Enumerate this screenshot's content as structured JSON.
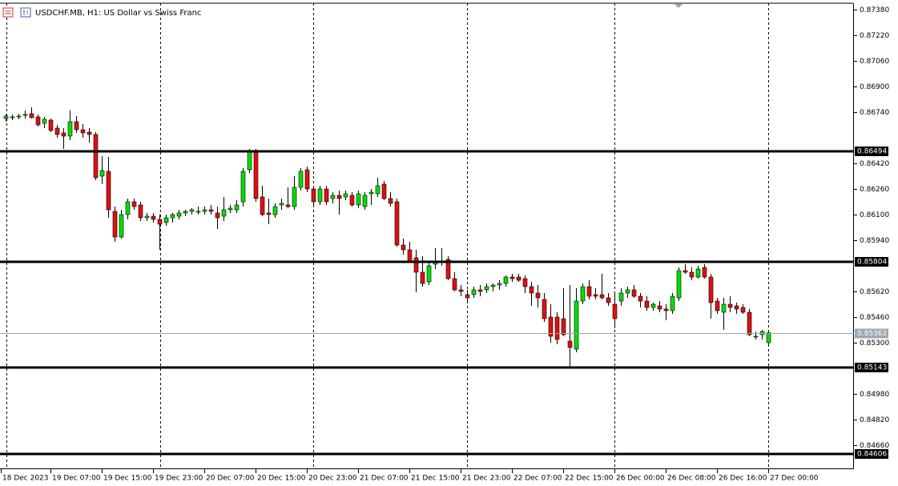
{
  "chart_data": {
    "type": "candlestick",
    "title": "USDCHF.MB, H1:  US Dollar vs Swiss Franc",
    "up_color": "#00e000",
    "down_color": "#e01010",
    "ylim": [
      0.84515,
      0.8744
    ],
    "yticks": [
      {
        "value": 0.8738,
        "label": "0.87380"
      },
      {
        "value": 0.8722,
        "label": "0.87220"
      },
      {
        "value": 0.8706,
        "label": "0.87060"
      },
      {
        "value": 0.869,
        "label": "0.86900"
      },
      {
        "value": 0.8674,
        "label": "0.86740"
      },
      {
        "value": 0.8642,
        "label": "0.86420"
      },
      {
        "value": 0.8626,
        "label": "0.86260"
      },
      {
        "value": 0.861,
        "label": "0.86100"
      },
      {
        "value": 0.8594,
        "label": "0.85940"
      },
      {
        "value": 0.8562,
        "label": "0.85620"
      },
      {
        "value": 0.8546,
        "label": "0.85460"
      },
      {
        "value": 0.853,
        "label": "0.85300"
      },
      {
        "value": 0.8498,
        "label": "0.84980"
      },
      {
        "value": 0.8482,
        "label": "0.84820"
      },
      {
        "value": 0.8466,
        "label": "0.84660"
      }
    ],
    "levels": [
      {
        "value": 0.86494,
        "label": "0.86494"
      },
      {
        "value": 0.85804,
        "label": "0.85804"
      },
      {
        "value": 0.85143,
        "label": "0.85143"
      },
      {
        "value": 0.84606,
        "label": "0.84606"
      }
    ],
    "current_price": {
      "value": 0.85362,
      "label": "0.85362"
    },
    "x_labels": [
      "18 Dec 2023",
      "19 Dec 07:00",
      "19 Dec 15:00",
      "19 Dec 23:00",
      "20 Dec 07:00",
      "20 Dec 15:00",
      "20 Dec 23:00",
      "21 Dec 07:00",
      "21 Dec 15:00",
      "21 Dec 23:00",
      "22 Dec 07:00",
      "22 Dec 15:00",
      "26 Dec 00:00",
      "26 Dec 08:00",
      "26 Dec 16:00",
      "27 Dec 00:00"
    ],
    "ohlc": [
      [
        0.867,
        0.86725,
        0.8668,
        0.86715
      ],
      [
        0.8671,
        0.86725,
        0.8669,
        0.8671
      ],
      [
        0.8671,
        0.8673,
        0.86695,
        0.86715
      ],
      [
        0.8672,
        0.8675,
        0.867,
        0.86725
      ],
      [
        0.8673,
        0.8677,
        0.867,
        0.86705
      ],
      [
        0.8671,
        0.86725,
        0.8665,
        0.8666
      ],
      [
        0.8667,
        0.8671,
        0.8664,
        0.86695
      ],
      [
        0.8669,
        0.867,
        0.86615,
        0.86625
      ],
      [
        0.8664,
        0.8666,
        0.8658,
        0.866
      ],
      [
        0.8661,
        0.8664,
        0.8651,
        0.8659
      ],
      [
        0.8659,
        0.8675,
        0.86565,
        0.8668
      ],
      [
        0.8668,
        0.86715,
        0.8661,
        0.8663
      ],
      [
        0.8663,
        0.86665,
        0.8658,
        0.8661
      ],
      [
        0.86615,
        0.8664,
        0.8655,
        0.866
      ],
      [
        0.866,
        0.86615,
        0.86315,
        0.8633
      ],
      [
        0.8634,
        0.86465,
        0.8629,
        0.86375
      ],
      [
        0.8637,
        0.8646,
        0.8608,
        0.8613
      ],
      [
        0.8612,
        0.8615,
        0.8593,
        0.8596
      ],
      [
        0.8596,
        0.8613,
        0.8595,
        0.861
      ],
      [
        0.861,
        0.862,
        0.8607,
        0.8618
      ],
      [
        0.8618,
        0.862,
        0.8613,
        0.8615
      ],
      [
        0.8616,
        0.8618,
        0.8606,
        0.8608
      ],
      [
        0.8608,
        0.8611,
        0.8606,
        0.8609
      ],
      [
        0.8609,
        0.8611,
        0.8605,
        0.8607
      ],
      [
        0.8607,
        0.861,
        0.8588,
        0.8604
      ],
      [
        0.8605,
        0.861,
        0.8603,
        0.8608
      ],
      [
        0.8608,
        0.8611,
        0.8605,
        0.861
      ],
      [
        0.8609,
        0.8613,
        0.8607,
        0.8611
      ],
      [
        0.8611,
        0.8613,
        0.8609,
        0.8612
      ],
      [
        0.8612,
        0.8614,
        0.861,
        0.8613
      ],
      [
        0.8612,
        0.8615,
        0.861,
        0.8612
      ],
      [
        0.8612,
        0.8615,
        0.861,
        0.8613
      ],
      [
        0.8613,
        0.8616,
        0.861,
        0.8612
      ],
      [
        0.8611,
        0.8615,
        0.8601,
        0.8608
      ],
      [
        0.8609,
        0.8621,
        0.8606,
        0.8613
      ],
      [
        0.8613,
        0.8616,
        0.8611,
        0.8614
      ],
      [
        0.8613,
        0.8619,
        0.8611,
        0.8616
      ],
      [
        0.8618,
        0.8639,
        0.8615,
        0.8637
      ],
      [
        0.8638,
        0.8651,
        0.8636,
        0.8649
      ],
      [
        0.8649,
        0.8651,
        0.8618,
        0.862
      ],
      [
        0.8621,
        0.8628,
        0.8609,
        0.861
      ],
      [
        0.8611,
        0.862,
        0.8604,
        0.861
      ],
      [
        0.861,
        0.8617,
        0.8608,
        0.8615
      ],
      [
        0.8616,
        0.862,
        0.8613,
        0.8617
      ],
      [
        0.8616,
        0.8627,
        0.8614,
        0.8615
      ],
      [
        0.8615,
        0.8634,
        0.8613,
        0.8627
      ],
      [
        0.8627,
        0.8639,
        0.8625,
        0.8637
      ],
      [
        0.8638,
        0.864,
        0.8624,
        0.8626
      ],
      [
        0.8626,
        0.8628,
        0.8616,
        0.8618
      ],
      [
        0.8618,
        0.8628,
        0.8616,
        0.8626
      ],
      [
        0.8626,
        0.8628,
        0.8616,
        0.8618
      ],
      [
        0.862,
        0.8624,
        0.8617,
        0.8622
      ],
      [
        0.8622,
        0.8625,
        0.861,
        0.862
      ],
      [
        0.8621,
        0.8625,
        0.8619,
        0.8623
      ],
      [
        0.8622,
        0.8624,
        0.8615,
        0.8616
      ],
      [
        0.8616,
        0.8625,
        0.8614,
        0.8623
      ],
      [
        0.8615,
        0.8624,
        0.8613,
        0.8622
      ],
      [
        0.8623,
        0.8626,
        0.8616,
        0.8624
      ],
      [
        0.8623,
        0.8633,
        0.8621,
        0.8628
      ],
      [
        0.8629,
        0.8631,
        0.8619,
        0.862
      ],
      [
        0.862,
        0.8624,
        0.8615,
        0.8617
      ],
      [
        0.8618,
        0.862,
        0.859,
        0.8591
      ],
      [
        0.8591,
        0.8595,
        0.8585,
        0.8588
      ],
      [
        0.8588,
        0.8593,
        0.858,
        0.8581
      ],
      [
        0.8583,
        0.8588,
        0.85615,
        0.8574
      ],
      [
        0.8574,
        0.8584,
        0.8565,
        0.8567
      ],
      [
        0.8568,
        0.858,
        0.8566,
        0.8578
      ],
      [
        0.8579,
        0.8589,
        0.8576,
        0.8581
      ],
      [
        0.858,
        0.8589,
        0.8578,
        0.8581
      ],
      [
        0.8582,
        0.8584,
        0.8569,
        0.857
      ],
      [
        0.857,
        0.8574,
        0.8562,
        0.8563
      ],
      [
        0.8563,
        0.8566,
        0.8559,
        0.8562
      ],
      [
        0.856,
        0.8563,
        0.8556,
        0.8558
      ],
      [
        0.856,
        0.8565,
        0.8558,
        0.8563
      ],
      [
        0.8563,
        0.8566,
        0.8559,
        0.8562
      ],
      [
        0.8563,
        0.8567,
        0.8561,
        0.8565
      ],
      [
        0.8565,
        0.8567,
        0.8562,
        0.8566
      ],
      [
        0.8566,
        0.8569,
        0.8563,
        0.8567
      ],
      [
        0.8567,
        0.8572,
        0.8565,
        0.8571
      ],
      [
        0.8571,
        0.8573,
        0.8568,
        0.857
      ],
      [
        0.8571,
        0.8573,
        0.8568,
        0.8569
      ],
      [
        0.857,
        0.8572,
        0.8561,
        0.8565
      ],
      [
        0.8565,
        0.8568,
        0.8553,
        0.8561
      ],
      [
        0.8561,
        0.8566,
        0.8552,
        0.8558
      ],
      [
        0.8557,
        0.8561,
        0.8543,
        0.8545
      ],
      [
        0.8546,
        0.8554,
        0.853,
        0.8534
      ],
      [
        0.8546,
        0.8549,
        0.8529,
        0.8532
      ],
      [
        0.8545,
        0.8564,
        0.8534,
        0.8535
      ],
      [
        0.8531,
        0.8566,
        0.8514,
        0.8527
      ],
      [
        0.8526,
        0.8564,
        0.8524,
        0.8556
      ],
      [
        0.8556,
        0.8567,
        0.8554,
        0.8565
      ],
      [
        0.8565,
        0.8569,
        0.8557,
        0.8559
      ],
      [
        0.856,
        0.8564,
        0.8557,
        0.8559
      ],
      [
        0.856,
        0.8573,
        0.8557,
        0.8558
      ],
      [
        0.8558,
        0.8561,
        0.8553,
        0.8555
      ],
      [
        0.8554,
        0.8561,
        0.8539,
        0.8545
      ],
      [
        0.8556,
        0.8564,
        0.8553,
        0.8561
      ],
      [
        0.8561,
        0.8565,
        0.8558,
        0.8563
      ],
      [
        0.8563,
        0.8566,
        0.8558,
        0.8559
      ],
      [
        0.8559,
        0.8561,
        0.8552,
        0.8556
      ],
      [
        0.8556,
        0.8559,
        0.855,
        0.8552
      ],
      [
        0.8552,
        0.8555,
        0.855,
        0.8554
      ],
      [
        0.8553,
        0.8556,
        0.8549,
        0.8551
      ],
      [
        0.8551,
        0.8554,
        0.8544,
        0.855
      ],
      [
        0.855,
        0.8561,
        0.8548,
        0.8559
      ],
      [
        0.8558,
        0.8577,
        0.8556,
        0.8575
      ],
      [
        0.8575,
        0.8579,
        0.8573,
        0.8574
      ],
      [
        0.8574,
        0.8577,
        0.8569,
        0.8571
      ],
      [
        0.8571,
        0.8578,
        0.857,
        0.8576
      ],
      [
        0.8577,
        0.8579,
        0.857,
        0.8571
      ],
      [
        0.8571,
        0.8573,
        0.8545,
        0.8555
      ],
      [
        0.8556,
        0.8558,
        0.8548,
        0.855
      ],
      [
        0.8549,
        0.8558,
        0.8538,
        0.8554
      ],
      [
        0.8554,
        0.8559,
        0.8549,
        0.8552
      ],
      [
        0.8553,
        0.8555,
        0.8548,
        0.8551
      ],
      [
        0.8552,
        0.8554,
        0.8548,
        0.8549
      ],
      [
        0.8549,
        0.8551,
        0.8534,
        0.8535
      ],
      [
        0.8534,
        0.8537,
        0.8532,
        0.8534
      ],
      [
        0.8535,
        0.8538,
        0.8532,
        0.8537
      ],
      [
        0.853,
        0.8538,
        0.8529,
        0.85362
      ]
    ]
  }
}
